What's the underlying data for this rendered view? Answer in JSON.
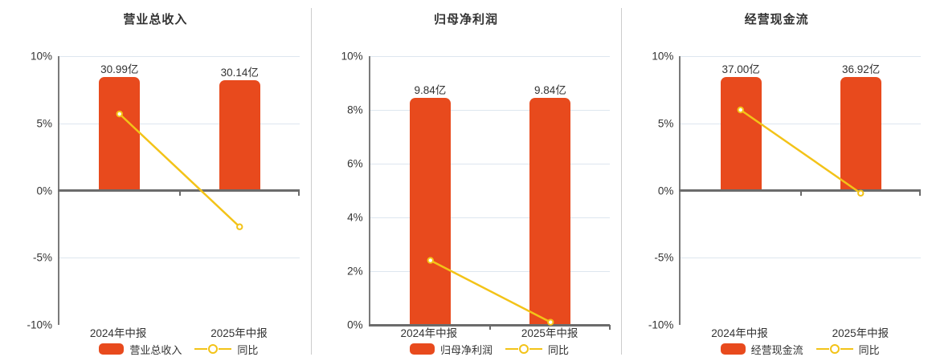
{
  "colors": {
    "bar": "#e84a1d",
    "line": "#f3c318",
    "grid": "#dde6ef",
    "zero_axis": "#6b6b6b",
    "y_axis": "#7a7a7a",
    "divider": "#cccccc",
    "text": "#333333",
    "title": "#333333",
    "marker_fill": "#ffffff"
  },
  "chart_data": [
    {
      "type": "bar+line",
      "title": "营业总收入",
      "categories": [
        "2024年中报",
        "2025年中报"
      ],
      "bar_series": {
        "name": "营业总收入",
        "unit": "亿",
        "values": [
          30.99,
          30.14
        ],
        "labels": [
          "30.99亿",
          "30.14亿"
        ]
      },
      "line_series": {
        "name": "同比",
        "unit": "%",
        "values": [
          5.7,
          -2.7
        ]
      },
      "ylim": [
        -10,
        10
      ],
      "yticks": [
        {
          "v": 10,
          "label": "10%"
        },
        {
          "v": 5,
          "label": "5%"
        },
        {
          "v": 0,
          "label": "0%"
        },
        {
          "v": -5,
          "label": "-5%"
        },
        {
          "v": -10,
          "label": "-10%"
        }
      ],
      "grid": true,
      "legend_position": "bottom"
    },
    {
      "type": "bar+line",
      "title": "归母净利润",
      "categories": [
        "2024年中报",
        "2025年中报"
      ],
      "bar_series": {
        "name": "归母净利润",
        "unit": "亿",
        "values": [
          9.84,
          9.84
        ],
        "labels": [
          "9.84亿",
          "9.84亿"
        ]
      },
      "line_series": {
        "name": "同比",
        "unit": "%",
        "values": [
          2.4,
          0.1
        ]
      },
      "ylim": [
        0,
        10
      ],
      "yticks": [
        {
          "v": 10,
          "label": "10%"
        },
        {
          "v": 8,
          "label": "8%"
        },
        {
          "v": 6,
          "label": "6%"
        },
        {
          "v": 4,
          "label": "4%"
        },
        {
          "v": 2,
          "label": "2%"
        },
        {
          "v": 0,
          "label": "0%"
        }
      ],
      "grid": true,
      "legend_position": "bottom"
    },
    {
      "type": "bar+line",
      "title": "经营现金流",
      "categories": [
        "2024年中报",
        "2025年中报"
      ],
      "bar_series": {
        "name": "经营现金流",
        "unit": "亿",
        "values": [
          37.0,
          36.92
        ],
        "labels": [
          "37.00亿",
          "36.92亿"
        ]
      },
      "line_series": {
        "name": "同比",
        "unit": "%",
        "values": [
          6.0,
          -0.2
        ]
      },
      "ylim": [
        -10,
        10
      ],
      "yticks": [
        {
          "v": 10,
          "label": "10%"
        },
        {
          "v": 5,
          "label": "5%"
        },
        {
          "v": 0,
          "label": "0%"
        },
        {
          "v": -5,
          "label": "-5%"
        },
        {
          "v": -10,
          "label": "-10%"
        }
      ],
      "grid": true,
      "legend_position": "bottom"
    }
  ]
}
